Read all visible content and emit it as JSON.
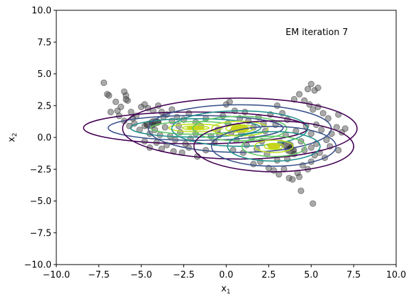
{
  "chart_data": {
    "type": "scatter",
    "title": "",
    "xlabel": "x",
    "xlabel_sub": "1",
    "ylabel": "x",
    "ylabel_sub": "2",
    "xlim": [
      -10,
      10
    ],
    "ylim": [
      -10,
      10
    ],
    "xticks": [
      -10,
      -7.5,
      -5,
      -2.5,
      0,
      2.5,
      5,
      7.5,
      10
    ],
    "yticks": [
      -10,
      -7.5,
      -5,
      -2.5,
      0,
      2.5,
      5,
      7.5,
      10
    ],
    "xtick_labels": [
      "−10.0",
      "−7.5",
      "−5.0",
      "−2.5",
      "0.0",
      "2.5",
      "5.0",
      "7.5",
      "10.0"
    ],
    "ytick_labels": [
      "−10.0",
      "−7.5",
      "−5.0",
      "−2.5",
      "0.0",
      "2.5",
      "5.0",
      "7.5",
      "10.0"
    ],
    "grid": false,
    "annotation": "EM iteration 7",
    "point_color": "#555555",
    "contour_colors": [
      "#440154",
      "#3b528b",
      "#21918c",
      "#5ec962",
      "#bddf26"
    ],
    "points": [
      [
        -7.2,
        4.3
      ],
      [
        -7.0,
        3.4
      ],
      [
        -6.9,
        3.3
      ],
      [
        -6.5,
        2.8
      ],
      [
        -6.2,
        2.4
      ],
      [
        -6.0,
        3.6
      ],
      [
        -5.9,
        3.3
      ],
      [
        -5.8,
        2.9
      ],
      [
        -6.4,
        2.1
      ],
      [
        -5.6,
        2.0
      ],
      [
        -5.3,
        1.7
      ],
      [
        -5.0,
        2.4
      ],
      [
        -4.8,
        2.6
      ],
      [
        -4.6,
        2.3
      ],
      [
        -4.3,
        2.1
      ],
      [
        -4.0,
        2.5
      ],
      [
        -3.8,
        2.0
      ],
      [
        -3.5,
        1.8
      ],
      [
        -3.2,
        2.2
      ],
      [
        -2.9,
        1.6
      ],
      [
        -2.5,
        1.4
      ],
      [
        -2.2,
        1.9
      ],
      [
        -1.8,
        1.2
      ],
      [
        -1.5,
        0.9
      ],
      [
        -1.2,
        1.5
      ],
      [
        -6.0,
        1.3
      ],
      [
        -5.7,
        0.9
      ],
      [
        -5.4,
        1.1
      ],
      [
        -5.1,
        0.6
      ],
      [
        -4.8,
        0.9
      ],
      [
        -4.5,
        0.3
      ],
      [
        -4.2,
        0.6
      ],
      [
        -3.9,
        0.2
      ],
      [
        -3.6,
        0.8
      ],
      [
        -3.3,
        0.1
      ],
      [
        -3.0,
        -0.2
      ],
      [
        -2.7,
        0.4
      ],
      [
        -2.4,
        -0.5
      ],
      [
        -2.1,
        -0.1
      ],
      [
        -1.8,
        0.3
      ],
      [
        -4.8,
        -0.3
      ],
      [
        -4.5,
        -0.8
      ],
      [
        -4.1,
        -0.4
      ],
      [
        -3.8,
        -0.9
      ],
      [
        -3.5,
        -0.6
      ],
      [
        -3.1,
        -1.1
      ],
      [
        -2.6,
        -1.2
      ],
      [
        -2.2,
        -0.8
      ],
      [
        -1.7,
        -1.5
      ],
      [
        -1.2,
        -1.0
      ],
      [
        -0.9,
        0.1
      ],
      [
        -0.5,
        0.6
      ],
      [
        -0.2,
        1.7
      ],
      [
        0.0,
        2.6
      ],
      [
        0.2,
        2.8
      ],
      [
        0.5,
        2.1
      ],
      [
        0.8,
        1.5
      ],
      [
        1.1,
        2.0
      ],
      [
        1.3,
        1.3
      ],
      [
        1.6,
        0.8
      ],
      [
        1.9,
        1.6
      ],
      [
        2.2,
        1.1
      ],
      [
        0.3,
        0.4
      ],
      [
        0.6,
        -0.2
      ],
      [
        0.9,
        0.3
      ],
      [
        1.2,
        -0.6
      ],
      [
        1.5,
        0.0
      ],
      [
        1.8,
        -0.9
      ],
      [
        2.1,
        -0.3
      ],
      [
        2.4,
        -1.3
      ],
      [
        2.7,
        -0.7
      ],
      [
        3.0,
        -1.8
      ],
      [
        1.6,
        -2.1
      ],
      [
        2.0,
        -1.9
      ],
      [
        2.5,
        -2.4
      ],
      [
        2.8,
        -2.6
      ],
      [
        3.1,
        -2.9
      ],
      [
        3.4,
        -2.5
      ],
      [
        3.7,
        -3.2
      ],
      [
        3.9,
        -3.3
      ],
      [
        4.2,
        -2.8
      ],
      [
        4.3,
        -3.1
      ],
      [
        4.5,
        -2.2
      ],
      [
        4.8,
        -2.5
      ],
      [
        5.0,
        -1.9
      ],
      [
        5.2,
        -1.4
      ],
      [
        5.5,
        -1.2
      ],
      [
        5.8,
        -1.6
      ],
      [
        3.2,
        -0.4
      ],
      [
        3.5,
        0.2
      ],
      [
        3.8,
        -0.8
      ],
      [
        4.1,
        0.5
      ],
      [
        4.4,
        -0.3
      ],
      [
        4.7,
        0.9
      ],
      [
        5.0,
        0.3
      ],
      [
        5.3,
        1.0
      ],
      [
        5.6,
        0.6
      ],
      [
        5.9,
        -0.2
      ],
      [
        6.2,
        0.3
      ],
      [
        6.5,
        0.8
      ],
      [
        6.8,
        0.4
      ],
      [
        7.0,
        0.7
      ],
      [
        6.6,
        1.8
      ],
      [
        6.0,
        1.5
      ],
      [
        5.7,
        1.9
      ],
      [
        5.4,
        2.4
      ],
      [
        5.1,
        2.2
      ],
      [
        4.9,
        2.6
      ],
      [
        4.6,
        2.9
      ],
      [
        4.3,
        3.4
      ],
      [
        4.0,
        3.0
      ],
      [
        4.8,
        3.8
      ],
      [
        5.0,
        4.2
      ],
      [
        5.2,
        3.7
      ],
      [
        5.4,
        3.9
      ],
      [
        3.0,
        2.5
      ],
      [
        3.3,
        1.9
      ],
      [
        3.6,
        1.4
      ],
      [
        2.9,
        1.0
      ],
      [
        3.6,
        -1.7
      ],
      [
        4.0,
        -1.3
      ],
      [
        4.6,
        -1.0
      ],
      [
        5.1,
        -5.2
      ],
      [
        4.4,
        -4.2
      ],
      [
        5.0,
        -0.8
      ],
      [
        5.3,
        -0.5
      ],
      [
        6.1,
        -0.7
      ],
      [
        6.6,
        -1.0
      ],
      [
        -6.8,
        2.0
      ],
      [
        -6.3,
        1.7
      ],
      [
        -5.5,
        1.5
      ],
      [
        -5.9,
        3.0
      ],
      [
        -4.0,
        1.2
      ],
      [
        -3.7,
        1.6
      ],
      [
        -2.8,
        0.9
      ],
      [
        -3.2,
        1.3
      ],
      [
        -0.7,
        -0.4
      ],
      [
        -0.4,
        0.2
      ],
      [
        0.1,
        1.1
      ],
      [
        0.7,
        0.9
      ],
      [
        2.3,
        0.5
      ],
      [
        2.6,
        1.8
      ],
      [
        1.0,
        -1.2
      ],
      [
        0.4,
        -1.0
      ]
    ],
    "dense_clusters": [
      {
        "x": -4.5,
        "y": 1.0
      },
      {
        "x": -4.2,
        "y": 1.2
      },
      {
        "x": 3.6,
        "y": -0.6
      },
      {
        "x": 3.8,
        "y": -1.0
      }
    ],
    "components": [
      {
        "mean": [
          -1.8,
          0.75
        ],
        "sx": 6.6,
        "sy": 1.25
      },
      {
        "mean": [
          0.8,
          0.7
        ],
        "sx": 6.9,
        "sy": 2.4
      },
      {
        "mean": [
          2.8,
          -0.7
        ],
        "sx": 4.7,
        "sy": 2.0
      }
    ],
    "contour_levels": [
      1.0,
      0.78,
      0.58,
      0.4,
      0.24,
      0.12
    ]
  }
}
